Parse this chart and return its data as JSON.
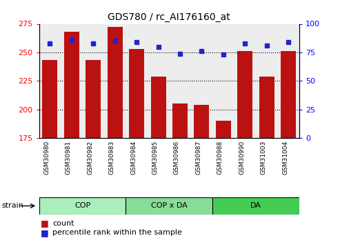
{
  "title": "GDS780 / rc_AI176160_at",
  "categories": [
    "GSM30980",
    "GSM30981",
    "GSM30982",
    "GSM30983",
    "GSM30984",
    "GSM30985",
    "GSM30986",
    "GSM30987",
    "GSM30988",
    "GSM30990",
    "GSM31003",
    "GSM31004"
  ],
  "count_values": [
    243,
    268,
    243,
    272,
    253,
    229,
    205,
    204,
    190,
    251,
    229,
    251
  ],
  "percentile_values": [
    83,
    86,
    83,
    85,
    84,
    80,
    74,
    76,
    73,
    83,
    81,
    84
  ],
  "ylim_left": [
    175,
    275
  ],
  "ylim_right": [
    0,
    100
  ],
  "yticks_left": [
    175,
    200,
    225,
    250,
    275
  ],
  "yticks_right": [
    0,
    25,
    50,
    75,
    100
  ],
  "bar_color": "#bb1111",
  "dot_color": "#2222cc",
  "grid_lines": [
    200,
    225,
    250
  ],
  "groups": [
    {
      "label": "COP",
      "start": 0,
      "end": 3,
      "color": "#aaeebb"
    },
    {
      "label": "COP x DA",
      "start": 4,
      "end": 7,
      "color": "#88dd99"
    },
    {
      "label": "DA",
      "start": 8,
      "end": 11,
      "color": "#44cc55"
    }
  ],
  "strain_label": "strain",
  "legend_count_label": "count",
  "legend_percentile_label": "percentile rank within the sample",
  "col_bg_color": "#cccccc",
  "col_bg_alpha": 0.35
}
